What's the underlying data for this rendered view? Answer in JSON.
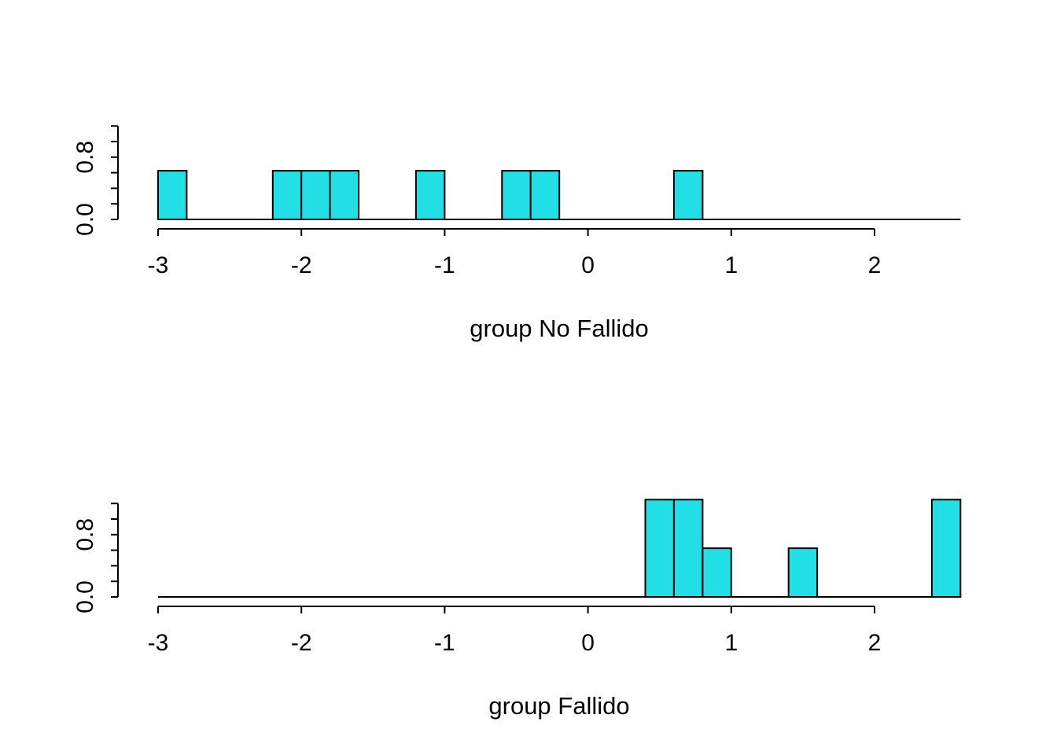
{
  "page": {
    "background_color": "#ffffff",
    "text_color": "#000000"
  },
  "chart_data": [
    {
      "name": "histogram-group-no-fallido",
      "type": "bar",
      "subtype": "histogram",
      "title": "",
      "xlabel": "group No Fallido",
      "ylabel": "",
      "xlim": [
        -3,
        2.6
      ],
      "ylim": [
        0,
        1.2
      ],
      "x_ticks": [
        -3,
        -2,
        -1,
        0,
        1,
        2
      ],
      "x_tick_labels": [
        "-3",
        "-2",
        "-1",
        "0",
        "1",
        "2"
      ],
      "y_ticks": [
        0,
        0.2,
        0.4,
        0.6,
        0.8,
        1.0,
        1.2
      ],
      "y_tick_labels": [
        "0.0",
        "",
        "",
        "",
        "0.8",
        "",
        ""
      ],
      "y_label_rotation": 90,
      "grid": false,
      "legend": false,
      "bin_width": 0.2,
      "total_count": 8,
      "bar_fill": "#22DFE5",
      "bar_stroke": "#000000",
      "bins": [
        {
          "from": -3.0,
          "to": -2.8,
          "count": 1,
          "density": 0.625
        },
        {
          "from": -2.2,
          "to": -2.0,
          "count": 1,
          "density": 0.625
        },
        {
          "from": -2.0,
          "to": -1.8,
          "count": 1,
          "density": 0.625
        },
        {
          "from": -1.8,
          "to": -1.6,
          "count": 1,
          "density": 0.625
        },
        {
          "from": -1.2,
          "to": -1.0,
          "count": 1,
          "density": 0.625
        },
        {
          "from": -0.6,
          "to": -0.4,
          "count": 1,
          "density": 0.625
        },
        {
          "from": -0.4,
          "to": -0.2,
          "count": 1,
          "density": 0.625
        },
        {
          "from": 0.6,
          "to": 0.8,
          "count": 1,
          "density": 0.625
        }
      ]
    },
    {
      "name": "histogram-group-fallido",
      "type": "bar",
      "subtype": "histogram",
      "title": "",
      "xlabel": "group Fallido",
      "ylabel": "",
      "xlim": [
        -3,
        2.6
      ],
      "ylim": [
        0,
        1.2
      ],
      "x_ticks": [
        -3,
        -2,
        -1,
        0,
        1,
        2
      ],
      "x_tick_labels": [
        "-3",
        "-2",
        "-1",
        "0",
        "1",
        "2"
      ],
      "y_ticks": [
        0,
        0.2,
        0.4,
        0.6,
        0.8,
        1.0,
        1.2
      ],
      "y_tick_labels": [
        "0.0",
        "",
        "",
        "",
        "0.8",
        "",
        ""
      ],
      "y_label_rotation": 90,
      "grid": false,
      "legend": false,
      "bin_width": 0.2,
      "total_count": 8,
      "bar_fill": "#22DFE5",
      "bar_stroke": "#000000",
      "bins": [
        {
          "from": 0.4,
          "to": 0.6,
          "count": 2,
          "density": 1.25
        },
        {
          "from": 0.6,
          "to": 0.8,
          "count": 2,
          "density": 1.25
        },
        {
          "from": 0.8,
          "to": 1.0,
          "count": 1,
          "density": 0.625
        },
        {
          "from": 1.4,
          "to": 1.6,
          "count": 1,
          "density": 0.625
        },
        {
          "from": 2.4,
          "to": 2.6,
          "count": 2,
          "density": 1.25
        }
      ]
    }
  ]
}
